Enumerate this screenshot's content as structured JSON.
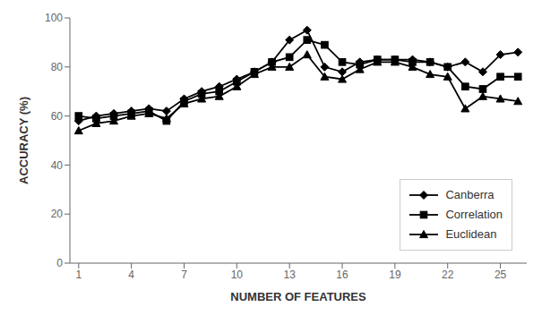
{
  "chart_data": {
    "type": "line",
    "xlabel": "NUMBER OF FEATURES",
    "ylabel": "ACCURACY (%)",
    "x": [
      1,
      2,
      3,
      4,
      5,
      6,
      7,
      8,
      9,
      10,
      11,
      12,
      13,
      14,
      15,
      16,
      17,
      18,
      19,
      20,
      21,
      22,
      23,
      24,
      25,
      26
    ],
    "series": [
      {
        "name": "Canberra",
        "color": "#000000",
        "marker": "diamond",
        "values": [
          58,
          60,
          61,
          62,
          63,
          62,
          67,
          70,
          72,
          75,
          78,
          82,
          91,
          95,
          80,
          78,
          82,
          83,
          83,
          83,
          82,
          80,
          82,
          78,
          85,
          86
        ]
      },
      {
        "name": "Correlation",
        "color": "#000000",
        "marker": "square",
        "values": [
          60,
          59,
          60,
          61,
          62,
          58,
          66,
          69,
          70,
          74,
          78,
          82,
          84,
          91,
          89,
          82,
          81,
          83,
          83,
          82,
          82,
          80,
          72,
          71,
          76,
          76
        ]
      },
      {
        "name": "Euclidean",
        "color": "#000000",
        "marker": "triangle",
        "values": [
          54,
          57,
          58,
          60,
          61,
          59,
          65,
          67,
          68,
          72,
          77,
          80,
          80,
          85,
          76,
          75,
          79,
          82,
          82,
          80,
          77,
          76,
          63,
          68,
          67,
          66
        ]
      }
    ],
    "xlim": [
      0.5,
      26.5
    ],
    "xticks": [
      1,
      4,
      7,
      10,
      13,
      16,
      19,
      22,
      25
    ],
    "ylim": [
      0,
      100
    ],
    "yticks": [
      0,
      20,
      40,
      60,
      80,
      100
    ],
    "grid": false,
    "legend": "lower right"
  }
}
